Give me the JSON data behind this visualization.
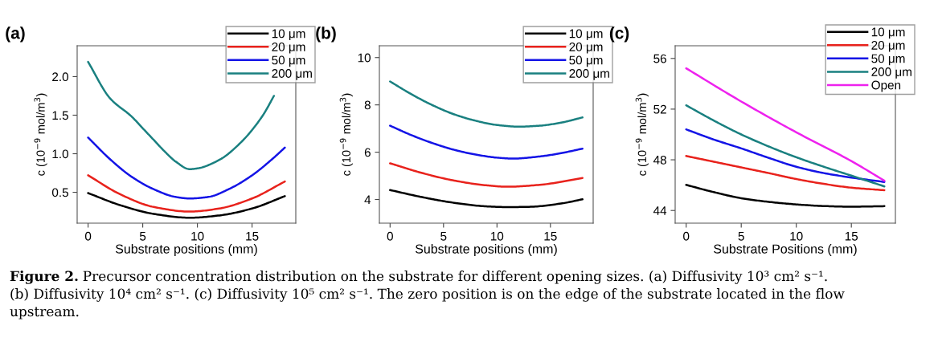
{
  "chart_data": [
    {
      "type": "line",
      "title": "(a)",
      "xlabel": "Substrate positions (mm)",
      "ylabel": "c (10$^{−9}$ mol/m$^{3}$)",
      "xlim": [
        -1,
        19
      ],
      "ylim": [
        0.1,
        2.4
      ],
      "xticks": [
        0,
        5,
        10,
        15
      ],
      "yticks": [
        {
          "value": 0.5,
          "label": "0.5"
        },
        {
          "value": 1.0,
          "label": "1.0"
        },
        {
          "value": 1.5,
          "label": "1.5"
        },
        {
          "value": 2.0,
          "label": "2.0"
        }
      ],
      "legend": "top right",
      "grid": false,
      "series": [
        {
          "name": "10 μm",
          "color": "#000000",
          "x": [
            0,
            3,
            6,
            9.3,
            12,
            15,
            18
          ],
          "values": [
            0.49,
            0.33,
            0.22,
            0.17,
            0.2,
            0.29,
            0.45
          ]
        },
        {
          "name": "20 μm",
          "color": "#e8221c",
          "x": [
            0,
            3,
            6,
            9.3,
            12,
            15,
            18
          ],
          "values": [
            0.72,
            0.47,
            0.31,
            0.25,
            0.29,
            0.42,
            0.64
          ]
        },
        {
          "name": "50 μm",
          "color": "#1414e6",
          "x": [
            0,
            2,
            4,
            6,
            8,
            9.3,
            11,
            13,
            15,
            17,
            18
          ],
          "values": [
            1.21,
            0.93,
            0.7,
            0.54,
            0.44,
            0.42,
            0.44,
            0.55,
            0.72,
            0.95,
            1.08
          ]
        },
        {
          "name": "200 μm",
          "color": "#1a8080",
          "x": [
            0,
            2,
            4,
            5,
            6,
            7,
            8,
            9.3,
            10,
            12,
            14,
            16,
            17
          ],
          "values": [
            2.19,
            1.72,
            1.48,
            1.33,
            1.18,
            1.03,
            0.9,
            0.8,
            0.81,
            0.92,
            1.15,
            1.5,
            1.75
          ]
        }
      ],
      "annotations": [
        "Figure 2.",
        "Precursor concentration distribution on the substrate for different opening sizes. (a) Diffusivity 10³ cm² s⁻¹.",
        "(b) Diffusivity 10⁴ cm² s⁻¹. (c) Diffusivity 10⁵ cm² s⁻¹. The zero position is on the edge of the substrate located in the flow",
        "upstream."
      ]
    },
    {
      "type": "line",
      "title": "(b)",
      "xlabel": "Substrate positions (mm)",
      "ylabel": "c (10$^{−9}$ mol/m$^{3}$)",
      "xlim": [
        -1,
        19
      ],
      "ylim": [
        3.0,
        10.5
      ],
      "xticks": [
        0,
        5,
        10,
        15
      ],
      "yticks": [
        4,
        6,
        8,
        10
      ],
      "legend": "top right",
      "grid": false,
      "series": [
        {
          "name": "10 μm",
          "color": "#000000",
          "x": [
            0,
            3,
            6,
            9,
            11,
            13,
            16,
            18
          ],
          "values": [
            4.4,
            4.1,
            3.86,
            3.71,
            3.68,
            3.69,
            3.83,
            4.01
          ]
        },
        {
          "name": "20 μm",
          "color": "#e8221c",
          "x": [
            0,
            3,
            6,
            9,
            11,
            14,
            18
          ],
          "values": [
            5.53,
            5.12,
            4.8,
            4.6,
            4.54,
            4.62,
            4.91
          ]
        },
        {
          "name": "50 μm",
          "color": "#1414e6",
          "x": [
            0,
            2,
            4,
            6,
            8,
            10,
            11.5,
            14,
            16,
            18
          ],
          "values": [
            7.12,
            6.72,
            6.38,
            6.1,
            5.9,
            5.77,
            5.73,
            5.82,
            5.96,
            6.15
          ]
        },
        {
          "name": "200 μm",
          "color": "#1a8080",
          "x": [
            0,
            2,
            4,
            6,
            8,
            10,
            12,
            14,
            16,
            18
          ],
          "values": [
            8.99,
            8.45,
            7.98,
            7.6,
            7.33,
            7.15,
            7.08,
            7.12,
            7.25,
            7.47
          ]
        }
      ]
    },
    {
      "type": "line",
      "title": "(c)",
      "xlabel": "Substrate Positions (mm)",
      "ylabel": "c (10$^{−9}$ mol/m$^{3}$)",
      "xlim": [
        -1,
        19
      ],
      "ylim": [
        43.0,
        57.0
      ],
      "xticks": [
        0,
        5,
        10,
        15
      ],
      "yticks": [
        44,
        48,
        52,
        56
      ],
      "legend": "top right",
      "grid": false,
      "series": [
        {
          "name": "10 μm",
          "color": "#000000",
          "x": [
            0,
            2.5,
            5,
            7.5,
            10,
            12.5,
            15,
            18
          ],
          "values": [
            46.02,
            45.45,
            44.97,
            44.68,
            44.48,
            44.35,
            44.3,
            44.34
          ]
        },
        {
          "name": "20 μm",
          "color": "#e8221c",
          "x": [
            0,
            2.5,
            5,
            7.5,
            10,
            12.5,
            15,
            18
          ],
          "values": [
            48.3,
            47.85,
            47.4,
            46.95,
            46.48,
            46.1,
            45.8,
            45.6
          ]
        },
        {
          "name": "50 μm",
          "color": "#1414e6",
          "x": [
            0,
            2.5,
            5,
            7.5,
            10,
            12.5,
            15,
            18
          ],
          "values": [
            50.4,
            49.6,
            48.9,
            48.15,
            47.45,
            46.95,
            46.6,
            46.25
          ]
        },
        {
          "name": "200 μm",
          "color": "#1a8080",
          "x": [
            0,
            2.5,
            5,
            7.5,
            10,
            12.5,
            15,
            18
          ],
          "values": [
            52.3,
            51.1,
            50.0,
            49.05,
            48.2,
            47.45,
            46.75,
            45.9
          ]
        },
        {
          "name": "Open",
          "color": "#ee22ee",
          "x": [
            0,
            5,
            10,
            15,
            18
          ],
          "values": [
            55.22,
            52.6,
            50.17,
            47.9,
            46.35
          ]
        }
      ]
    }
  ]
}
